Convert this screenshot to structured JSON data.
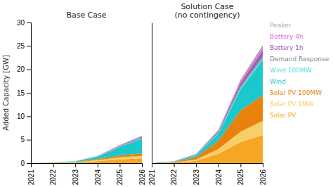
{
  "chart_data": [
    {
      "type": "area",
      "stacked": true,
      "title": "Base Case",
      "ylabel": "Added Capacity [GW]",
      "x": [
        2021,
        2022,
        2023,
        2024,
        2025,
        2026
      ],
      "xlim": [
        2021,
        2026
      ],
      "xticks": [
        2021,
        2022,
        2023,
        2024,
        2025,
        2026
      ],
      "ylim": [
        0,
        30
      ],
      "yticks": [
        0,
        5,
        10,
        15,
        20,
        25,
        30
      ],
      "grid": false,
      "series": [
        {
          "name": "Solar PV",
          "color": "#F5A623",
          "values": [
            0.0,
            0.05,
            0.1,
            0.4,
            0.8,
            1.0
          ]
        },
        {
          "name": "Solar PV 1MW",
          "color": "#F7CE6A",
          "values": [
            0.0,
            0.03,
            0.07,
            0.25,
            0.45,
            0.55
          ]
        },
        {
          "name": "Solar PV 100MW",
          "color": "#E8820C",
          "values": [
            0.0,
            0.03,
            0.07,
            0.2,
            0.4,
            0.5
          ]
        },
        {
          "name": "Wind",
          "color": "#1BC8CC",
          "values": [
            0.0,
            0.05,
            0.15,
            0.5,
            1.8,
            3.2
          ]
        },
        {
          "name": "Wind 100MW",
          "color": "#5DD8DC",
          "values": [
            0.0,
            0.0,
            0.01,
            0.04,
            0.08,
            0.1
          ]
        },
        {
          "name": "Demand Response",
          "color": "#888888",
          "values": [
            0.0,
            0.0,
            0.01,
            0.03,
            0.06,
            0.08
          ]
        },
        {
          "name": "Battery 1h",
          "color": "#9B59B6",
          "values": [
            0.0,
            0.0,
            0.01,
            0.05,
            0.12,
            0.18
          ]
        },
        {
          "name": "Battery 4h",
          "color": "#D670E0",
          "values": [
            0.0,
            0.0,
            0.01,
            0.04,
            0.1,
            0.15
          ]
        },
        {
          "name": "Peaker",
          "color": "#AAAAAA",
          "values": [
            0.0,
            0.0,
            0.01,
            0.03,
            0.06,
            0.1
          ]
        }
      ]
    },
    {
      "type": "area",
      "stacked": true,
      "title": "Solution Case\n(no contingency)",
      "x": [
        2021,
        2022,
        2023,
        2024,
        2025,
        2026
      ],
      "xlim": [
        2021,
        2026
      ],
      "xticks": [
        2021,
        2022,
        2023,
        2024,
        2025,
        2026
      ],
      "ylim": [
        0,
        30
      ],
      "tick_labels": "x",
      "grid": false,
      "legend": "right",
      "series": [
        {
          "name": "Solar PV",
          "color": "#F5A623",
          "values": [
            0.0,
            0.1,
            0.5,
            2.0,
            4.5,
            6.0
          ]
        },
        {
          "name": "Solar PV 1MW",
          "color": "#F7CE6A",
          "values": [
            0.0,
            0.05,
            0.25,
            1.0,
            2.2,
            3.0
          ]
        },
        {
          "name": "Solar PV 100MW",
          "color": "#E8820C",
          "values": [
            0.0,
            0.1,
            0.5,
            1.8,
            4.5,
            5.5
          ]
        },
        {
          "name": "Wind",
          "color": "#1BC8CC",
          "values": [
            0.0,
            0.1,
            0.4,
            1.5,
            4.5,
            7.5
          ]
        },
        {
          "name": "Wind 100MW",
          "color": "#5DD8DC",
          "values": [
            0.0,
            0.02,
            0.08,
            0.2,
            0.4,
            0.5
          ]
        },
        {
          "name": "Demand Response",
          "color": "#888888",
          "values": [
            0.0,
            0.02,
            0.07,
            0.15,
            0.35,
            0.45
          ]
        },
        {
          "name": "Battery 1h",
          "color": "#9B59B6",
          "values": [
            0.0,
            0.02,
            0.08,
            0.2,
            0.6,
            1.0
          ]
        },
        {
          "name": "Battery 4h",
          "color": "#D670E0",
          "values": [
            0.0,
            0.01,
            0.05,
            0.15,
            0.45,
            0.7
          ]
        },
        {
          "name": "Peaker",
          "color": "#AAAAAA",
          "values": [
            0.0,
            0.01,
            0.05,
            0.1,
            0.3,
            0.5
          ]
        }
      ]
    }
  ]
}
